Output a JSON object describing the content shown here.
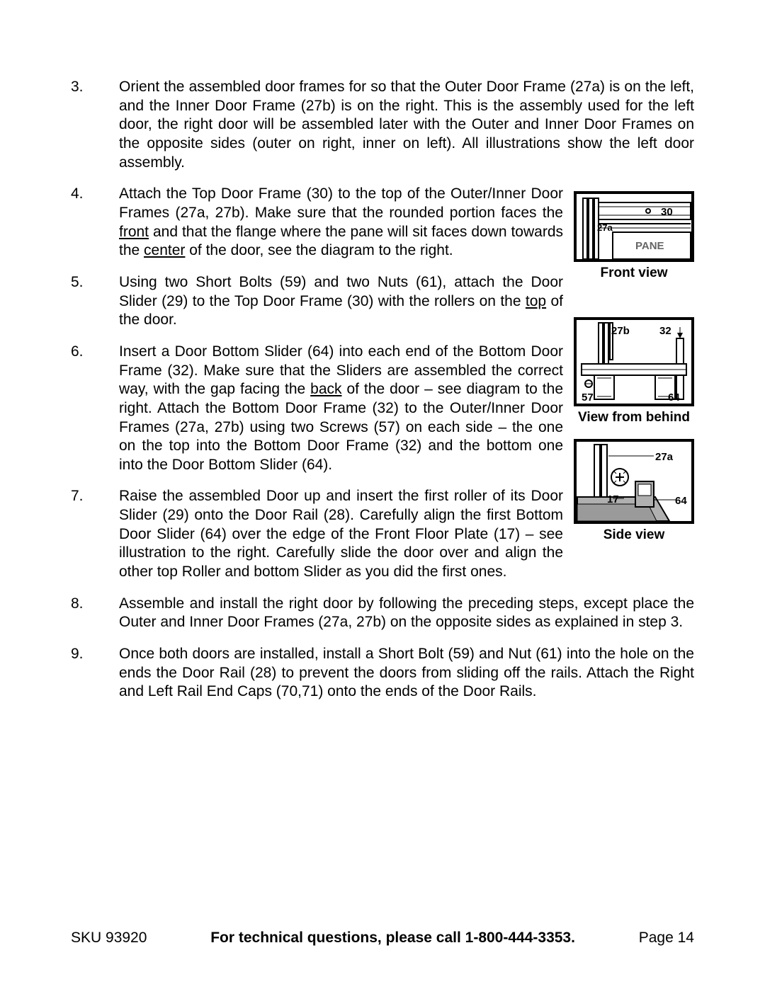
{
  "steps": [
    {
      "num": "3.",
      "narrow": false,
      "html": "Orient the assembled door frames for so that the Outer Door Frame (27a) is on the left, and the Inner Door Frame (27b) is on the right.  This is the assembly used for the left door, the right door will be assembled later with the Outer and Inner Door Frames on the opposite sides (outer on right, inner on left).  All illustrations show the left door assembly."
    },
    {
      "num": "4.",
      "narrow": true,
      "html": "Attach the Top Door Frame (30) to the top of the Outer/Inner Door Frames (27a, 27b).  Make sure that the rounded portion faces the <span class=\"u\">front</span> and that the flange where the pane will sit faces down towards the <span class=\"u\">center</span> of the door, see the diagram to the right."
    },
    {
      "num": "5.",
      "narrow": true,
      "html": "Using two Short Bolts (59) and two Nuts (61), attach the Door Slider (29) to the Top Door Frame (30) with the rollers on the <span class=\"u\">top</span> of the door."
    },
    {
      "num": "6.",
      "narrow": true,
      "html": "Insert a Door Bottom Slider (64) into each end of the Bottom Door Frame (32).  Make sure that the Sliders are assembled the correct way, with the gap facing the <span class=\"u\">back</span> of the door – see diagram to the right.  Attach the Bottom Door Frame (32) to the Outer/Inner Door Frames (27a, 27b) using two Screws (57) on each side – the one on the top into the Bottom Door Frame (32) and the bottom one into the Door Bottom Slider (64)."
    },
    {
      "num": "7.",
      "narrow": true,
      "html": "Raise the assembled Door up and insert the first roller of its Door Slider (29) onto the Door Rail (28). Carefully align the first Bottom Door Slider (64) over the edge of the Front Floor Plate (17) – see illustration to the right.  Carefully slide the door over and align the other top Roller and bottom Slider as you did the first ones."
    },
    {
      "num": "8.",
      "narrow": false,
      "html": "Assemble and install the right door by following the preceding steps, except place the Outer and Inner Door Frames (27a, 27b) on the opposite sides as explained in step 3."
    },
    {
      "num": "9.",
      "narrow": false,
      "html": "Once both doors are installed, install a Short Bolt (59) and Nut (61) into the hole on the ends the Door Rail (28) to prevent the doors from sliding off the rails.  Attach the Right and Left Rail End Caps (70,71) onto the ends of the Door Rails."
    }
  ],
  "diagrams": {
    "d1": {
      "caption": "Front view",
      "labels": {
        "a": "30",
        "b": "27a",
        "c": "PANE"
      }
    },
    "d2": {
      "caption": "View from behind",
      "labels": {
        "a": "27b",
        "b": "32",
        "c": "57",
        "d": "64"
      }
    },
    "d3": {
      "caption": "Side view",
      "labels": {
        "a": "27a",
        "b": "17",
        "c": "64"
      }
    }
  },
  "footer": {
    "sku": "SKU 93920",
    "mid": "For technical questions, please call 1-800-444-3353.",
    "page": "Page 14"
  },
  "colors": {
    "text": "#000000",
    "bg": "#ffffff",
    "gray_fill": "#b0b0b0"
  }
}
